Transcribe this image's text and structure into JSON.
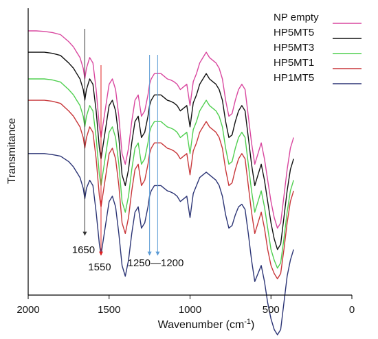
{
  "chart_data": {
    "type": "line",
    "title": "",
    "xlabel": "Wavenumber (cm",
    "xlabel_sup": "-1",
    "xlabel_tail": ")",
    "ylabel": "Transmitance",
    "xlim": [
      2000,
      0
    ],
    "x_ticks": [
      2000,
      1500,
      1000,
      500,
      0
    ],
    "x_tick_labels": [
      "2000",
      "1500",
      "1000",
      "500",
      "0"
    ],
    "y_axis_values": false,
    "legend_position": "top-right",
    "x": [
      2000,
      1950,
      1900,
      1850,
      1800,
      1750,
      1720,
      1700,
      1680,
      1660,
      1650,
      1640,
      1620,
      1600,
      1580,
      1560,
      1550,
      1530,
      1510,
      1500,
      1480,
      1460,
      1440,
      1420,
      1400,
      1380,
      1360,
      1340,
      1320,
      1300,
      1280,
      1260,
      1250,
      1240,
      1220,
      1200,
      1180,
      1160,
      1140,
      1120,
      1100,
      1080,
      1060,
      1040,
      1020,
      1000,
      980,
      960,
      940,
      920,
      900,
      880,
      860,
      840,
      820,
      800,
      780,
      760,
      740,
      720,
      700,
      680,
      660,
      640,
      620,
      600,
      580,
      560,
      540,
      520,
      500,
      480,
      460,
      440,
      420,
      400,
      380,
      360
    ],
    "series": [
      {
        "name": "NP empty",
        "color": "#d9479f",
        "values": [
          4.8,
          4.8,
          4.79,
          4.77,
          4.73,
          4.6,
          4.5,
          4.4,
          4.3,
          4.1,
          3.9,
          4.1,
          4.3,
          4.2,
          3.7,
          3.0,
          2.8,
          3.2,
          3.6,
          3.8,
          3.9,
          3.7,
          3.2,
          2.5,
          2.3,
          2.6,
          3.1,
          3.5,
          3.6,
          3.2,
          3.3,
          3.6,
          3.8,
          3.9,
          4.0,
          4.0,
          4.0,
          3.95,
          3.9,
          3.88,
          3.85,
          3.8,
          3.7,
          3.75,
          3.8,
          3.4,
          3.85,
          4.0,
          4.2,
          4.3,
          4.4,
          4.3,
          4.25,
          4.2,
          4.1,
          3.9,
          3.5,
          3.2,
          3.25,
          3.5,
          3.7,
          3.8,
          3.7,
          3.2,
          2.7,
          2.3,
          2.5,
          2.7,
          2.4,
          2.0,
          1.6,
          1.3,
          1.1,
          1.2,
          1.7,
          2.2,
          2.6,
          2.8
        ]
      },
      {
        "name": "HP5MT5",
        "color": "#111111",
        "values": [
          4.4,
          4.4,
          4.4,
          4.38,
          4.34,
          4.2,
          4.1,
          4.0,
          3.9,
          3.7,
          3.5,
          3.7,
          3.9,
          3.8,
          3.3,
          2.6,
          2.4,
          2.8,
          3.2,
          3.4,
          3.5,
          3.3,
          2.8,
          2.1,
          1.9,
          2.2,
          2.7,
          3.1,
          3.2,
          2.8,
          2.9,
          3.2,
          3.4,
          3.5,
          3.6,
          3.6,
          3.6,
          3.55,
          3.5,
          3.48,
          3.45,
          3.4,
          3.3,
          3.35,
          3.4,
          3.0,
          3.45,
          3.6,
          3.8,
          3.9,
          4.0,
          3.9,
          3.85,
          3.8,
          3.7,
          3.5,
          3.1,
          2.8,
          2.85,
          3.1,
          3.3,
          3.4,
          3.3,
          2.8,
          2.3,
          1.9,
          2.1,
          2.3,
          2.0,
          1.6,
          1.2,
          0.9,
          0.7,
          0.8,
          1.3,
          1.8,
          2.2,
          2.4
        ]
      },
      {
        "name": "HP5MT3",
        "color": "#4fcf4f",
        "values": [
          3.9,
          3.9,
          3.9,
          3.88,
          3.84,
          3.7,
          3.6,
          3.5,
          3.4,
          3.2,
          3.0,
          3.2,
          3.4,
          3.3,
          2.8,
          2.1,
          1.9,
          2.3,
          2.7,
          2.9,
          3.0,
          2.8,
          2.3,
          1.6,
          1.4,
          1.7,
          2.2,
          2.6,
          2.7,
          2.3,
          2.4,
          2.7,
          2.9,
          3.0,
          3.1,
          3.1,
          3.1,
          3.05,
          3.0,
          2.98,
          2.95,
          2.9,
          2.8,
          2.85,
          2.9,
          2.5,
          2.95,
          3.1,
          3.3,
          3.4,
          3.5,
          3.4,
          3.35,
          3.3,
          3.2,
          3.0,
          2.6,
          2.3,
          2.35,
          2.6,
          2.8,
          2.9,
          2.8,
          2.3,
          1.8,
          1.4,
          1.6,
          1.8,
          1.5,
          1.1,
          0.7,
          0.5,
          0.35,
          0.45,
          0.9,
          1.4,
          1.8,
          2.0
        ]
      },
      {
        "name": "HP5MT1",
        "color": "#c8373a",
        "values": [
          3.5,
          3.5,
          3.5,
          3.48,
          3.44,
          3.3,
          3.2,
          3.1,
          3.0,
          2.8,
          2.6,
          2.8,
          3.0,
          2.9,
          2.4,
          1.7,
          1.5,
          1.9,
          2.3,
          2.5,
          2.6,
          2.4,
          1.9,
          1.2,
          1.0,
          1.3,
          1.8,
          2.2,
          2.3,
          1.9,
          2.0,
          2.3,
          2.5,
          2.6,
          2.7,
          2.7,
          2.7,
          2.65,
          2.6,
          2.58,
          2.55,
          2.5,
          2.4,
          2.45,
          2.5,
          2.1,
          2.55,
          2.7,
          2.9,
          3.0,
          3.1,
          3.0,
          2.95,
          2.9,
          2.8,
          2.6,
          2.2,
          1.9,
          1.95,
          2.2,
          2.4,
          2.5,
          2.4,
          1.9,
          1.4,
          1.0,
          1.2,
          1.4,
          1.1,
          0.7,
          0.4,
          0.25,
          0.15,
          0.25,
          0.7,
          1.2,
          1.6,
          1.8
        ]
      },
      {
        "name": "HP1MT5",
        "color": "#2b3475",
        "values": [
          2.5,
          2.5,
          2.5,
          2.48,
          2.45,
          2.35,
          2.25,
          2.15,
          2.05,
          1.85,
          1.65,
          1.85,
          2.0,
          1.9,
          1.4,
          0.8,
          0.6,
          1.0,
          1.4,
          1.6,
          1.7,
          1.5,
          1.0,
          0.4,
          0.2,
          0.5,
          1.0,
          1.4,
          1.5,
          1.1,
          1.2,
          1.5,
          1.7,
          1.8,
          1.9,
          1.9,
          1.9,
          1.85,
          1.8,
          1.78,
          1.75,
          1.7,
          1.6,
          1.65,
          1.7,
          1.3,
          1.75,
          1.9,
          2.05,
          2.1,
          2.15,
          2.1,
          2.05,
          2.0,
          1.9,
          1.7,
          1.35,
          1.1,
          1.15,
          1.35,
          1.5,
          1.55,
          1.45,
          1.0,
          0.5,
          0.1,
          0.25,
          0.4,
          0.1,
          -0.3,
          -0.6,
          -0.8,
          -0.9,
          -0.8,
          -0.3,
          0.2,
          0.5,
          0.7
        ]
      }
    ],
    "annotations": [
      {
        "text": "1650",
        "x": 1650,
        "color": "#333333"
      },
      {
        "text": "1550",
        "x": 1550,
        "color": "#e02020"
      },
      {
        "text": "1250—1200",
        "x": [
          1250,
          1200
        ],
        "color": "#5b9bd5"
      }
    ]
  }
}
